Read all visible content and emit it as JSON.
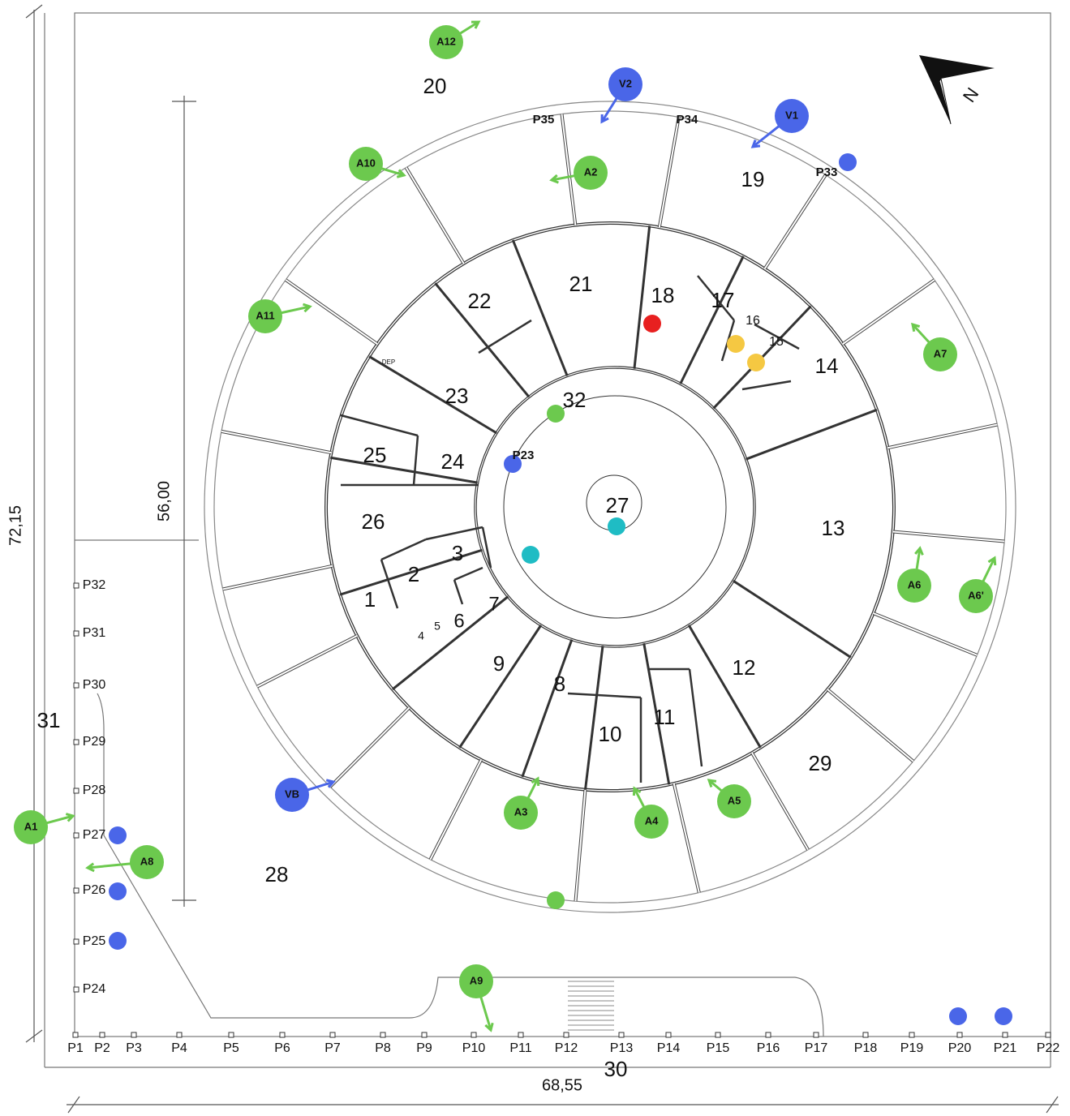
{
  "rooms": [
    "20",
    "21",
    "22",
    "23",
    "24",
    "25",
    "26",
    "1",
    "2",
    "3",
    "4",
    "5",
    "6",
    "7",
    "8",
    "9",
    "10",
    "11",
    "12",
    "13",
    "14",
    "15",
    "16",
    "17",
    "18",
    "19",
    "27",
    "28",
    "29",
    "30",
    "31",
    "32",
    "DEP"
  ],
  "posts": [
    "P1",
    "P2",
    "P3",
    "P4",
    "P5",
    "P6",
    "P7",
    "P8",
    "P9",
    "P10",
    "P11",
    "P12",
    "P13",
    "P14",
    "P15",
    "P16",
    "P17",
    "P18",
    "P19",
    "P20",
    "P21",
    "P22",
    "P23",
    "P24",
    "P25",
    "P26",
    "P27",
    "P28",
    "P29",
    "P30",
    "P31",
    "P32",
    "P33",
    "P34",
    "P35"
  ],
  "markers": [
    "A1",
    "A2",
    "A3",
    "A4",
    "A5",
    "A6",
    "A6'",
    "A7",
    "A8",
    "A9",
    "A10",
    "A11",
    "A12",
    "V1",
    "V2",
    "VB"
  ],
  "dimensions": [
    "72,15",
    "56,00",
    "68,55"
  ],
  "north": "N"
}
